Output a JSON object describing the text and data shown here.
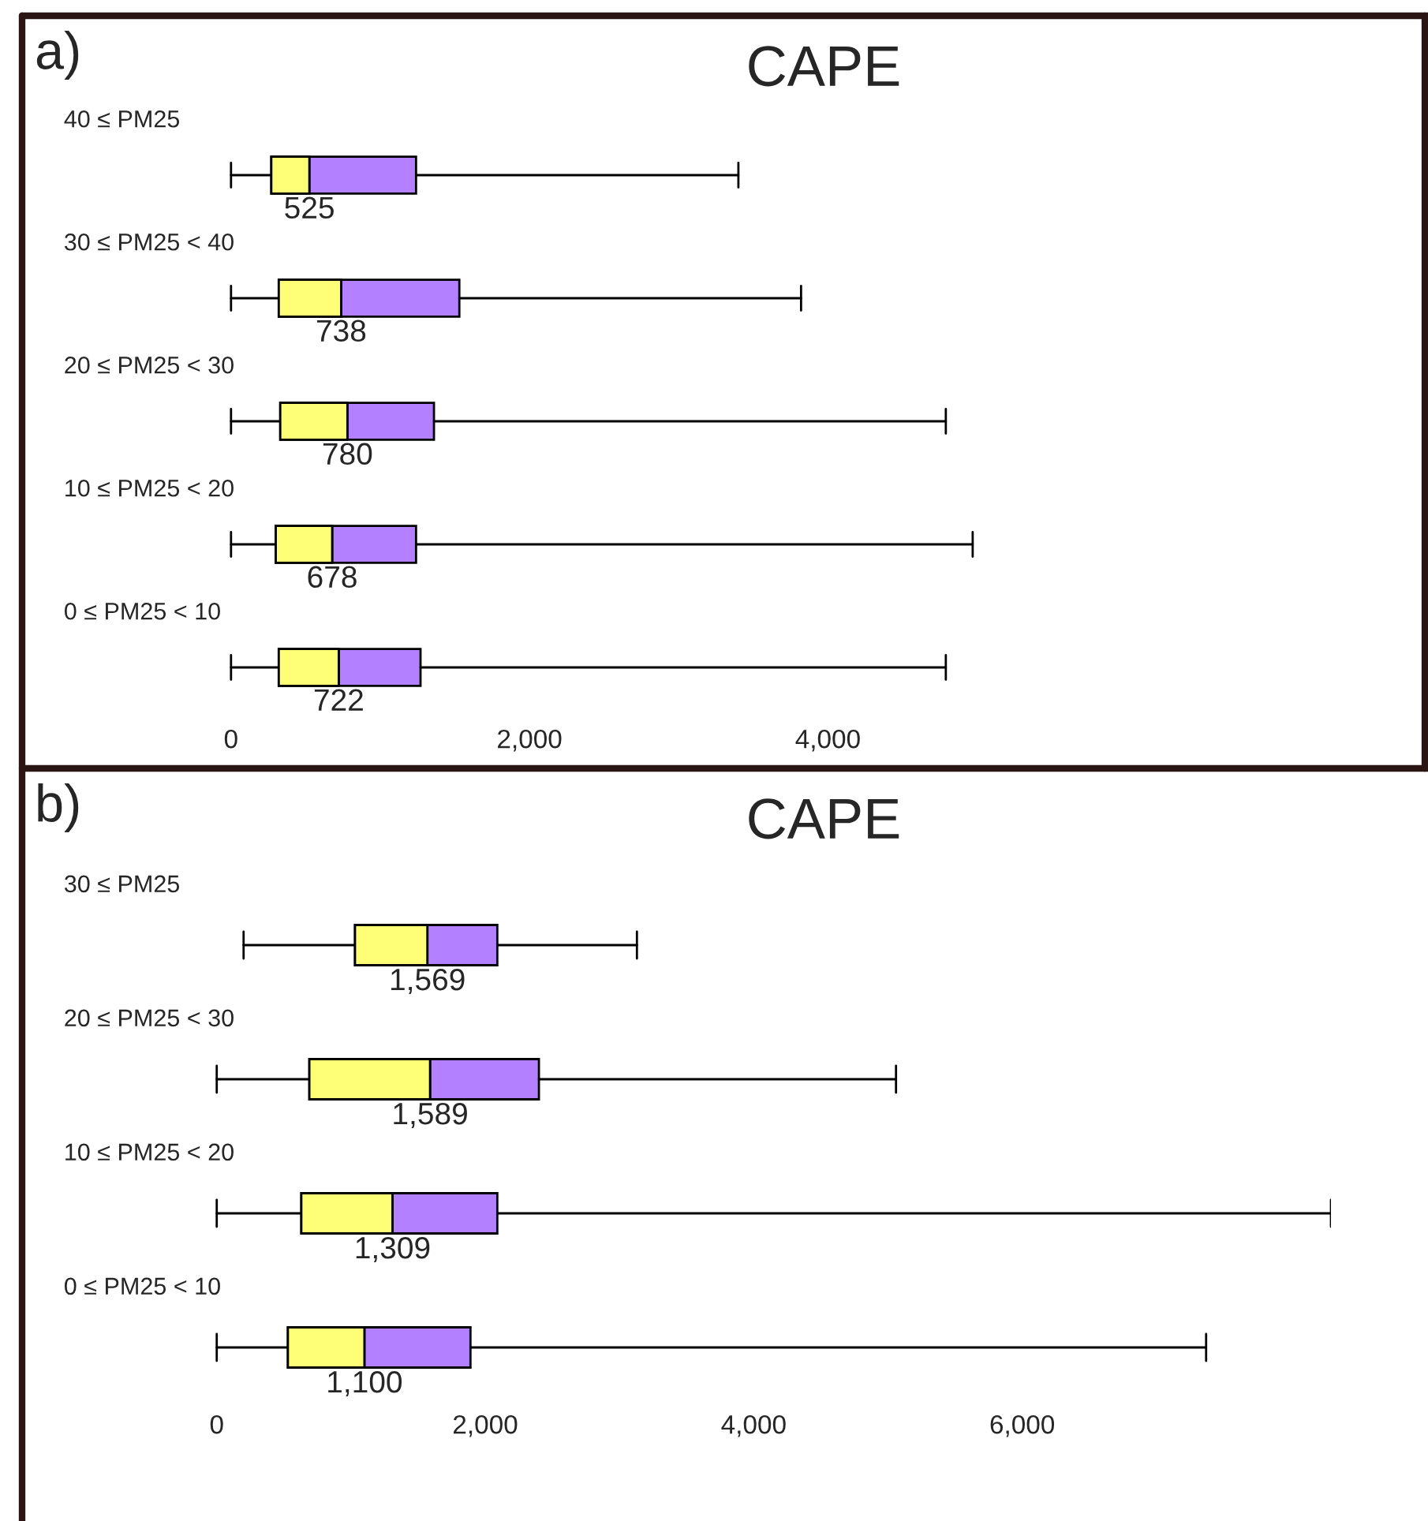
{
  "chart_data": [
    {
      "type": "box",
      "title": "CAPE",
      "annotations": [
        "a)"
      ],
      "categories": [
        "40 ≤ PM25",
        "30 ≤ PM25 < 40",
        "20 ≤ PM25 < 30",
        "10 ≤ PM25 < 20",
        "0 ≤ PM25 < 10"
      ],
      "orientation": "horizontal",
      "colors": [
        [
          "#ffff77",
          "#b380ff"
        ],
        [
          "#ffff77",
          "#b380ff"
        ],
        [
          "#ffff77",
          "#b380ff"
        ],
        [
          "#ffff77",
          "#b380ff"
        ],
        [
          "#ffff77",
          "#b380ff"
        ]
      ],
      "value_labels": [
        "525",
        "738",
        "780",
        "678",
        "722"
      ],
      "xlim": [
        -1400,
        8000
      ],
      "xticks": [
        {
          "value": 0,
          "label": "0"
        },
        {
          "value": 2000,
          "label": "2,000"
        },
        {
          "value": 4000,
          "label": "4,000"
        }
      ],
      "grid": false,
      "legend": false,
      "boxes": [
        {
          "low": 0,
          "q1": 270,
          "median": 525,
          "q3": 1240,
          "high": 3400
        },
        {
          "low": 0,
          "q1": 320,
          "median": 738,
          "q3": 1530,
          "high": 3820
        },
        {
          "low": 0,
          "q1": 330,
          "median": 780,
          "q3": 1360,
          "high": 4790
        },
        {
          "low": 0,
          "q1": 300,
          "median": 678,
          "q3": 1240,
          "high": 4970
        },
        {
          "low": 0,
          "q1": 320,
          "median": 722,
          "q3": 1270,
          "high": 4790
        }
      ]
    },
    {
      "type": "box",
      "title": "CAPE",
      "annotations": [
        "b)"
      ],
      "categories": [
        "30 ≤ PM25",
        "20 ≤ PM25 < 30",
        "10 ≤ PM25 < 20",
        "0 ≤ PM25 < 10"
      ],
      "orientation": "horizontal",
      "colors": [
        [
          "#ffff77",
          "#b380ff"
        ],
        [
          "#ffff77",
          "#b380ff"
        ],
        [
          "#ffff77",
          "#b380ff"
        ],
        [
          "#ffff77",
          "#b380ff"
        ]
      ],
      "value_labels": [
        "1,569",
        "1,589",
        "1,309",
        "1,100"
      ],
      "xlim": [
        -1450,
        8300
      ],
      "xticks": [
        {
          "value": 0,
          "label": "0"
        },
        {
          "value": 2000,
          "label": "2,000"
        },
        {
          "value": 4000,
          "label": "4,000"
        },
        {
          "value": 6000,
          "label": "6,000"
        }
      ],
      "grid": false,
      "legend": false,
      "boxes": [
        {
          "low": 200,
          "q1": 1030,
          "median": 1569,
          "q3": 2090,
          "high": 3130
        },
        {
          "low": 0,
          "q1": 690,
          "median": 1589,
          "q3": 2400,
          "high": 5060
        },
        {
          "low": 0,
          "q1": 630,
          "median": 1309,
          "q3": 2090,
          "high": 8300
        },
        {
          "low": 0,
          "q1": 530,
          "median": 1100,
          "q3": 1890,
          "high": 7370
        }
      ]
    }
  ]
}
